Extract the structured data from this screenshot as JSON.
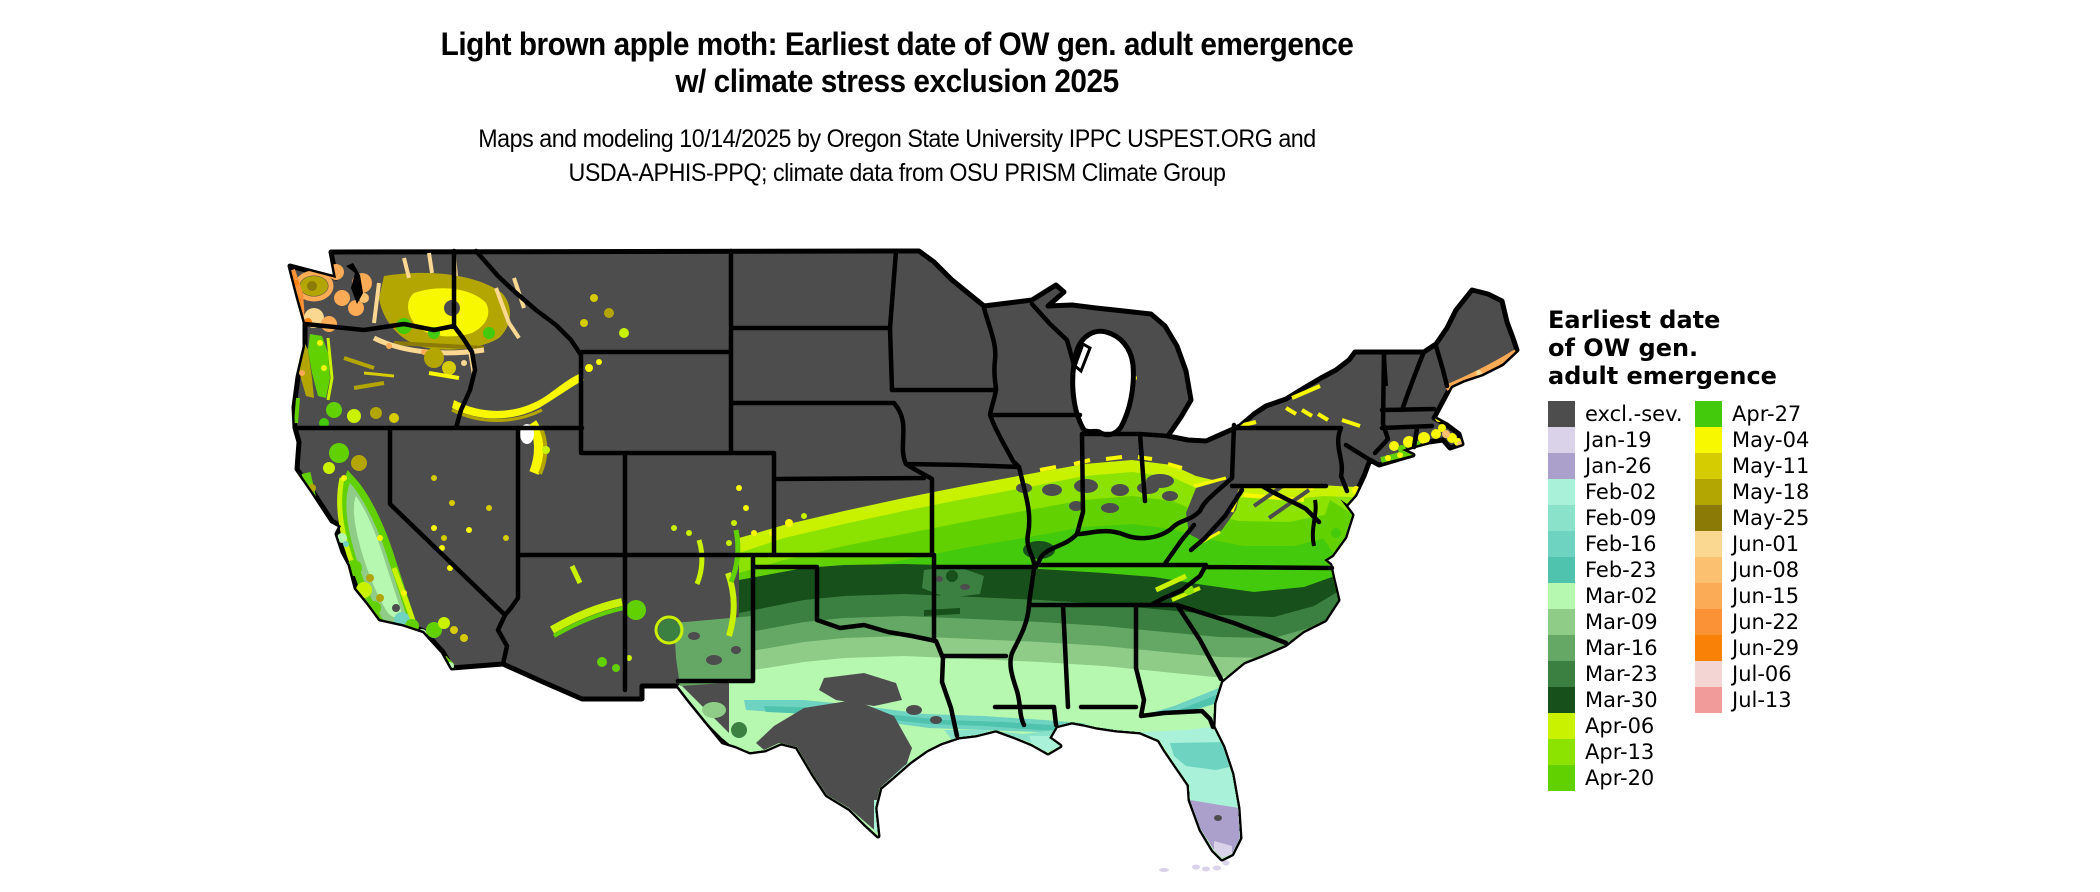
{
  "title": {
    "line1": "Light brown apple moth: Earliest date of OW gen. adult emergence",
    "line2": "w/ climate stress exclusion 2025"
  },
  "subtitle": {
    "line1": "Maps and modeling 10/14/2025 by Oregon State University IPPC USPEST.ORG and",
    "line2": "USDA-APHIS-PPQ; climate data from OSU PRISM Climate Group"
  },
  "legend": {
    "title": "Earliest date\nof OW gen.\nadult emergence",
    "columns": [
      {
        "items": [
          {
            "label": "excl.-sev.",
            "color": "#4d4d4d"
          },
          {
            "label": "Jan-19",
            "color": "#d9d2e9"
          },
          {
            "label": "Jan-26",
            "color": "#ab9fcc"
          },
          {
            "label": "Feb-02",
            "color": "#a9f1d8"
          },
          {
            "label": "Feb-09",
            "color": "#8ae2cb"
          },
          {
            "label": "Feb-16",
            "color": "#6ed3c0"
          },
          {
            "label": "Feb-23",
            "color": "#4fc3ae"
          },
          {
            "label": "Mar-02",
            "color": "#b6f8b0"
          },
          {
            "label": "Mar-09",
            "color": "#8fcc87"
          },
          {
            "label": "Mar-16",
            "color": "#65a865"
          },
          {
            "label": "Mar-23",
            "color": "#3b8041"
          },
          {
            "label": "Mar-30",
            "color": "#17501a"
          },
          {
            "label": "Apr-06",
            "color": "#c9f201"
          },
          {
            "label": "Apr-13",
            "color": "#8ce201"
          },
          {
            "label": "Apr-20",
            "color": "#62d101"
          }
        ]
      },
      {
        "items": [
          {
            "label": "Apr-27",
            "color": "#44ca0d"
          },
          {
            "label": "May-04",
            "color": "#f8f800"
          },
          {
            "label": "May-11",
            "color": "#d5cc02"
          },
          {
            "label": "May-18",
            "color": "#b3a602"
          },
          {
            "label": "May-25",
            "color": "#8c7a06"
          },
          {
            "label": "Jun-01",
            "color": "#fbd892"
          },
          {
            "label": "Jun-08",
            "color": "#fbc070"
          },
          {
            "label": "Jun-15",
            "color": "#fbaa55"
          },
          {
            "label": "Jun-22",
            "color": "#fb9336"
          },
          {
            "label": "Jun-29",
            "color": "#fa8108"
          },
          {
            "label": "Jul-06",
            "color": "#f3d5d3"
          },
          {
            "label": "Jul-13",
            "color": "#f19b9b"
          }
        ]
      }
    ]
  },
  "map_data": {
    "type": "choropleth-raster",
    "region": "Contiguous United States",
    "variable": "Earliest date of overwintering generation adult emergence, with climate stress exclusion, 2025",
    "land_excluded_color": "#4d4d4d",
    "state_border_color": "#000000",
    "water_color": "#ffffff",
    "patterns": [
      "Northern states, Rockies, Great Basin and high plains excluded (dark gray)",
      "Yellow-green Apr-06..Apr-27 band arcs from central Kansas through Missouri, Illinois, Indiana, Ohio, Kentucky, Virginia and mid-Atlantic coast",
      "Dark green Mar-23..Mar-30 band across Oklahoma, Arkansas, Tennessee and North Carolina",
      "Teal and mint Feb..early-Mar dates along Gulf Coast, Texas coastal plain, Georgia and South Carolina",
      "South Texas excluded (gray); Florida peninsula mint with Jan-26 purple and Jan-19 lavender at the southern tip and Keys",
      "Pacific coast: June oranges around Puget Sound and WA coast, olive/yellow May dates in Columbia Basin and Snake River Plain, green April dates in Willamette Valley, seafoam March dates in California Central Valley",
      "Scattered yellow May patches in Nevada, Utah, Colorado; green/chartreuse mountain arcs in Arizona and New Mexico",
      "Yellow May-04 patches along southern New England coast; Jun-15 orange strip on Maine coast"
    ]
  }
}
